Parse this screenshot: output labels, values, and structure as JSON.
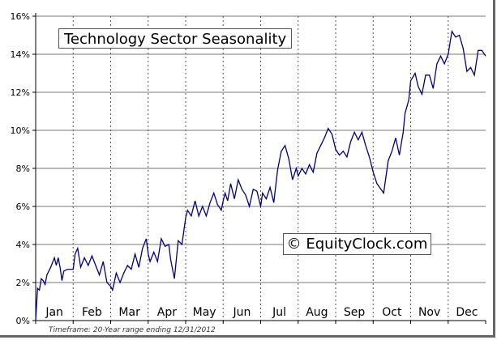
{
  "chart_data": {
    "type": "line",
    "title": "Technology Sector Seasonality",
    "watermark": "© EquityClock.com",
    "footnote": "Timeframe: 20-Year range ending 12/31/2012",
    "categories": [
      "Jan",
      "Feb",
      "Mar",
      "Apr",
      "May",
      "Jun",
      "Jul",
      "Aug",
      "Sep",
      "Oct",
      "Nov",
      "Dec"
    ],
    "ylim": [
      0,
      16
    ],
    "yticks": [
      "0%",
      "2%",
      "4%",
      "6%",
      "8%",
      "10%",
      "12%",
      "14%",
      "16%"
    ],
    "grid": true,
    "line_color": "#00007f",
    "series": [
      {
        "x": [
          0,
          0.05,
          0.1,
          0.15,
          0.2,
          0.25,
          0.3,
          0.4,
          0.5,
          0.55,
          0.6,
          0.65,
          0.7,
          0.75,
          0.85,
          1.0,
          1.05,
          1.12,
          1.2,
          1.3,
          1.4,
          1.5,
          1.6,
          1.7,
          1.8,
          1.9,
          2.0,
          2.05,
          2.15,
          2.25,
          2.35,
          2.45,
          2.55,
          2.65,
          2.75,
          2.85,
          2.95,
          3.0,
          3.05,
          3.15,
          3.25,
          3.35,
          3.45,
          3.55,
          3.6,
          3.7,
          3.8,
          3.9,
          4.0,
          4.05,
          4.15,
          4.25,
          4.35,
          4.45,
          4.55,
          4.65,
          4.75,
          4.85,
          4.95,
          5.0,
          5.05,
          5.12,
          5.2,
          5.3,
          5.4,
          5.5,
          5.6,
          5.7,
          5.8,
          5.9,
          6.0,
          6.05,
          6.15,
          6.25,
          6.35,
          6.45,
          6.55,
          6.65,
          6.75,
          6.85,
          6.95,
          7.0,
          7.1,
          7.2,
          7.3,
          7.4,
          7.5,
          7.6,
          7.7,
          7.8,
          7.9,
          8.0,
          8.1,
          8.2,
          8.3,
          8.4,
          8.5,
          8.6,
          8.7,
          8.8,
          8.9,
          9.0,
          9.1,
          9.28,
          9.4,
          9.5,
          9.6,
          9.7,
          9.8,
          9.85,
          9.95,
          10.0,
          10.12,
          10.2,
          10.3,
          10.4,
          10.5,
          10.6,
          10.7,
          10.8,
          10.9,
          11.0,
          11.1,
          11.2,
          11.3,
          11.4,
          11.5,
          11.6,
          11.7,
          11.8,
          11.9,
          12.0
        ],
        "y": [
          0,
          1.7,
          1.6,
          2.2,
          2.1,
          1.9,
          2.4,
          2.8,
          3.3,
          2.9,
          3.3,
          2.8,
          2.1,
          2.6,
          2.7,
          2.7,
          3.5,
          3.8,
          2.8,
          3.3,
          2.9,
          3.4,
          2.9,
          2.4,
          3.1,
          2.0,
          1.8,
          1.6,
          2.5,
          2.0,
          2.5,
          2.9,
          2.7,
          3.5,
          2.8,
          3.8,
          4.3,
          3.5,
          3.1,
          3.6,
          3.1,
          4.3,
          3.9,
          4.0,
          3.2,
          2.2,
          4.2,
          4.0,
          5.4,
          5.8,
          5.5,
          6.3,
          5.5,
          6.0,
          5.5,
          6.2,
          6.7,
          6.1,
          5.8,
          6.3,
          6.7,
          6.3,
          7.2,
          6.4,
          7.4,
          6.9,
          6.6,
          6.0,
          6.9,
          6.8,
          6.0,
          6.7,
          6.4,
          7.0,
          6.2,
          7.9,
          8.9,
          9.2,
          8.5,
          7.4,
          8.0,
          7.6,
          8.0,
          7.7,
          8.2,
          7.8,
          8.8,
          9.2,
          9.6,
          10.1,
          9.8,
          9.0,
          8.7,
          8.9,
          8.6,
          9.4,
          9.9,
          9.5,
          9.9,
          9.2,
          8.6,
          7.8,
          7.2,
          6.7,
          8.4,
          8.9,
          9.6,
          8.7,
          9.9,
          10.9,
          11.6,
          12.6,
          13.0,
          12.3,
          11.9,
          12.9,
          12.9,
          12.2,
          13.5,
          13.9,
          13.5,
          14.0,
          15.2,
          14.9,
          15.0,
          14.3,
          13.1,
          13.3,
          12.9,
          14.2,
          14.2,
          13.9
        ]
      }
    ]
  }
}
